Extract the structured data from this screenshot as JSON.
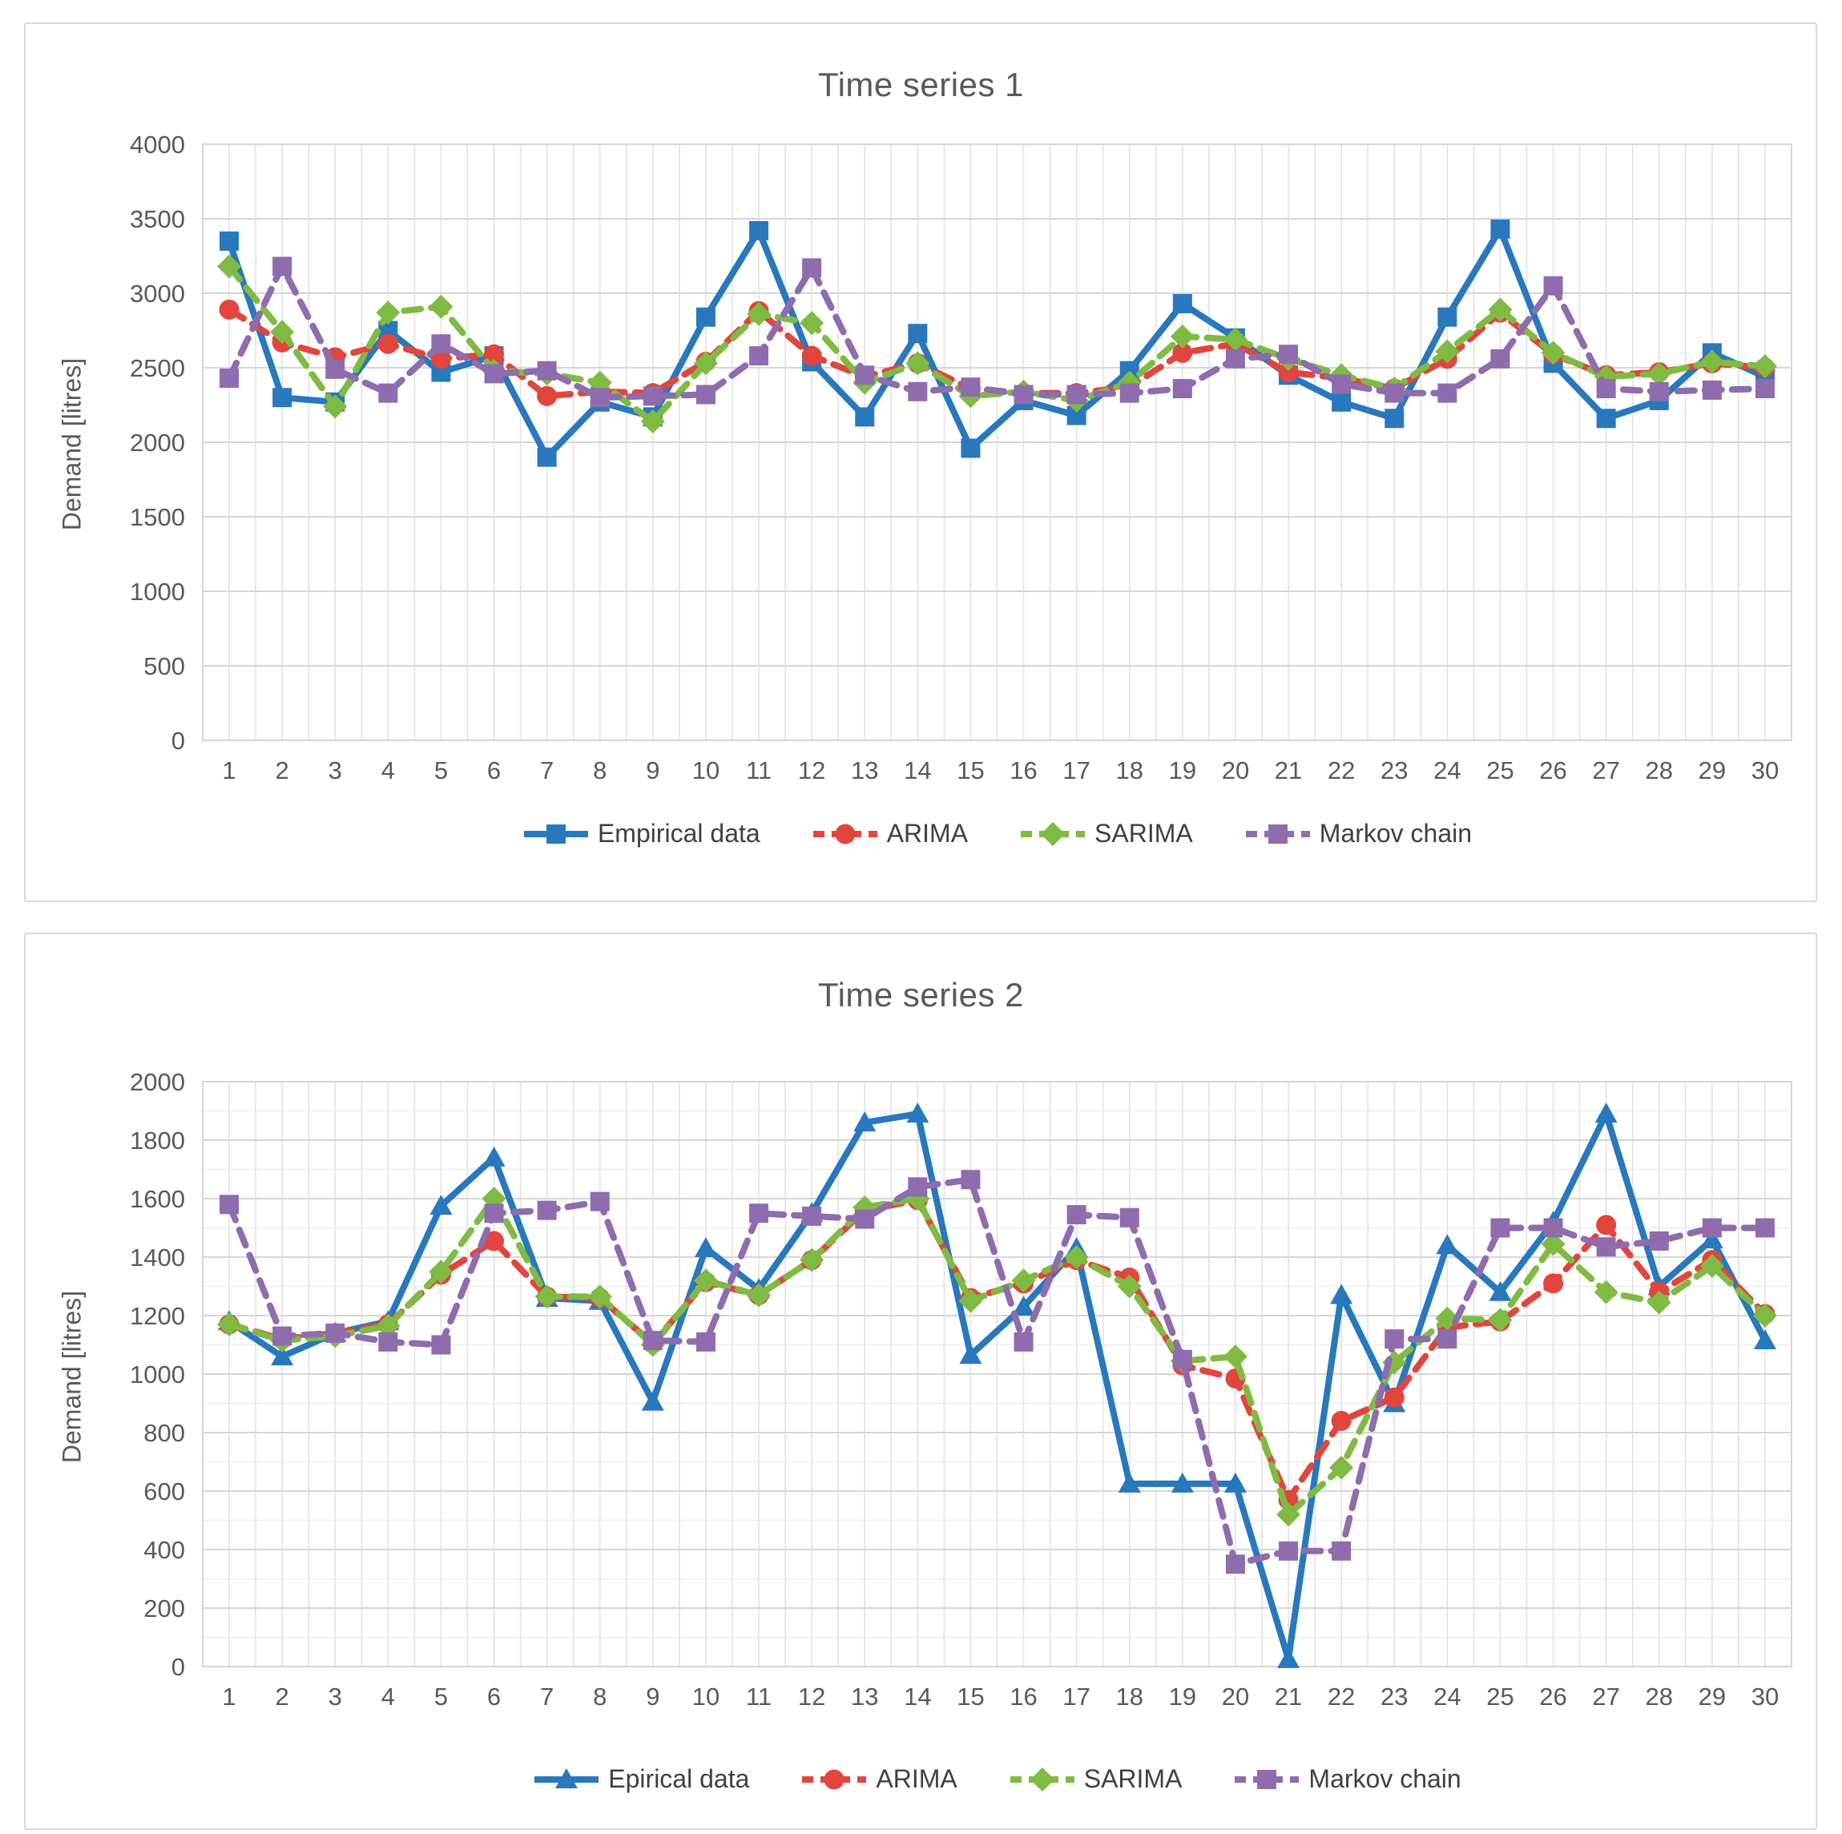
{
  "chart_data": [
    {
      "type": "line",
      "title": "Time series 1",
      "ylabel": "Demand [litres]",
      "xlabel": "",
      "ylim": [
        0,
        4000
      ],
      "y_major_step": 500,
      "y_minor_step": null,
      "y_ticks": [
        "0",
        "500",
        "1000",
        "1500",
        "2000",
        "2500",
        "3000",
        "3500",
        "4000"
      ],
      "x_ticks": [
        "1",
        "2",
        "3",
        "4",
        "5",
        "6",
        "7",
        "8",
        "9",
        "10",
        "11",
        "12",
        "13",
        "14",
        "15",
        "16",
        "17",
        "18",
        "19",
        "20",
        "21",
        "22",
        "23",
        "24",
        "25",
        "26",
        "27",
        "28",
        "29",
        "30"
      ],
      "legend_position": "bottom",
      "grid": true,
      "series": [
        {
          "name": "Empirical data",
          "color": "#2878be",
          "marker": "square",
          "dashed": false,
          "values": [
            3350,
            2300,
            2270,
            2750,
            2470,
            2580,
            1900,
            2270,
            2170,
            2840,
            3420,
            2540,
            2170,
            2730,
            1960,
            2280,
            2180,
            2480,
            2930,
            2700,
            2450,
            2270,
            2160,
            2840,
            3430,
            2530,
            2160,
            2280,
            2600,
            2440
          ]
        },
        {
          "name": "ARIMA",
          "color": "#e2453d",
          "marker": "circle",
          "dashed": true,
          "values": [
            2890,
            2670,
            2570,
            2660,
            2560,
            2590,
            2310,
            2340,
            2330,
            2540,
            2880,
            2580,
            2440,
            2530,
            2360,
            2330,
            2330,
            2370,
            2600,
            2660,
            2470,
            2430,
            2360,
            2560,
            2870,
            2590,
            2450,
            2470,
            2530,
            2500
          ]
        },
        {
          "name": "SARIMA",
          "color": "#7fbb42",
          "marker": "diamond",
          "dashed": true,
          "values": [
            3180,
            2740,
            2240,
            2870,
            2910,
            2480,
            2460,
            2400,
            2140,
            2530,
            2860,
            2800,
            2400,
            2530,
            2310,
            2340,
            2280,
            2400,
            2710,
            2690,
            2560,
            2450,
            2360,
            2610,
            2890,
            2600,
            2440,
            2460,
            2540,
            2510
          ]
        },
        {
          "name": "Markov chain",
          "color": "#8e6cae",
          "marker": "square",
          "dashed": true,
          "values": [
            2430,
            3180,
            2490,
            2330,
            2660,
            2460,
            2480,
            2300,
            2310,
            2320,
            2580,
            3170,
            2450,
            2340,
            2370,
            2320,
            2320,
            2330,
            2360,
            2560,
            2590,
            2390,
            2330,
            2330,
            2560,
            3050,
            2360,
            2340,
            2350,
            2360
          ]
        }
      ]
    },
    {
      "type": "line",
      "title": "Time series 2",
      "ylabel": "Demand [litres]",
      "xlabel": "",
      "ylim": [
        0,
        2000
      ],
      "y_major_step": 200,
      "y_minor_step": 100,
      "y_ticks": [
        "0",
        "200",
        "400",
        "600",
        "800",
        "1000",
        "1200",
        "1400",
        "1600",
        "1800",
        "2000"
      ],
      "x_ticks": [
        "1",
        "2",
        "3",
        "4",
        "5",
        "6",
        "7",
        "8",
        "9",
        "10",
        "11",
        "12",
        "13",
        "14",
        "15",
        "16",
        "17",
        "18",
        "19",
        "20",
        "21",
        "22",
        "23",
        "24",
        "25",
        "26",
        "27",
        "28",
        "29",
        "30"
      ],
      "legend_position": "bottom",
      "grid": true,
      "series": [
        {
          "name": "Epirical data",
          "color": "#2878be",
          "marker": "triangle",
          "dashed": false,
          "values": [
            1180,
            1060,
            1140,
            1180,
            1575,
            1740,
            1260,
            1250,
            905,
            1430,
            1290,
            1550,
            1860,
            1890,
            1065,
            1230,
            1430,
            625,
            625,
            625,
            25,
            1270,
            900,
            1440,
            1280,
            1520,
            1890,
            1300,
            1460,
            1115
          ]
        },
        {
          "name": "ARIMA",
          "color": "#e2453d",
          "marker": "circle",
          "dashed": true,
          "values": [
            1170,
            1120,
            1140,
            1170,
            1340,
            1455,
            1265,
            1260,
            1105,
            1315,
            1270,
            1390,
            1560,
            1595,
            1260,
            1310,
            1390,
            1330,
            1030,
            985,
            570,
            840,
            920,
            1160,
            1180,
            1310,
            1510,
            1280,
            1390,
            1205
          ]
        },
        {
          "name": "SARIMA",
          "color": "#7fbb42",
          "marker": "diamond",
          "dashed": true,
          "values": [
            1170,
            1115,
            1130,
            1165,
            1350,
            1600,
            1265,
            1265,
            1100,
            1320,
            1270,
            1390,
            1570,
            1600,
            1250,
            1320,
            1400,
            1300,
            1045,
            1060,
            520,
            680,
            1040,
            1190,
            1185,
            1445,
            1280,
            1245,
            1370,
            1200
          ]
        },
        {
          "name": "Markov chain",
          "color": "#8e6cae",
          "marker": "square",
          "dashed": true,
          "values": [
            1580,
            1130,
            1140,
            1110,
            1100,
            1550,
            1560,
            1590,
            1115,
            1110,
            1550,
            1540,
            1530,
            1640,
            1665,
            1110,
            1545,
            1535,
            1050,
            350,
            395,
            395,
            1120,
            1120,
            1500,
            1500,
            1435,
            1455,
            1500,
            1500
          ]
        }
      ]
    }
  ],
  "style": {
    "grid_major_color": "#d6d6d6",
    "grid_minor_color": "#ededed",
    "grid_vertical_color": "#e2e2e2",
    "axis_color": "#bfbfbf",
    "text_color": "#595959"
  }
}
